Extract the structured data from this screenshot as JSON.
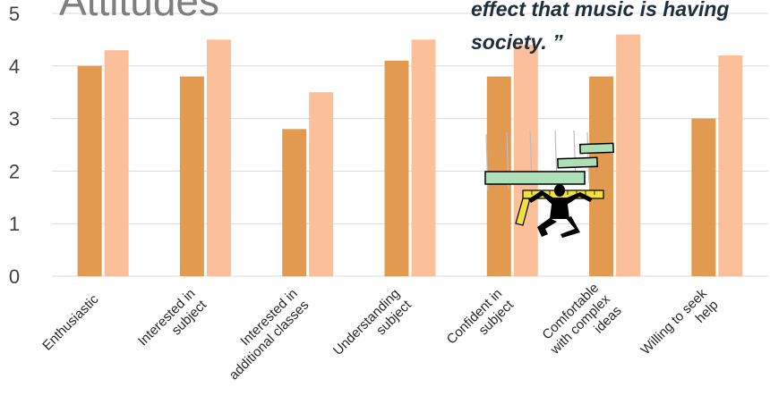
{
  "slide": {
    "title": "Attitudes",
    "quote_line1": "effect that music is having",
    "quote_line2": "society. ”"
  },
  "chart_data": {
    "type": "bar",
    "categories": [
      [
        "Enthusiastic"
      ],
      [
        "Interested in",
        "subject"
      ],
      [
        "Interested in",
        "additional classes"
      ],
      [
        "Understanding",
        "subject"
      ],
      [
        "Confident in",
        "subject"
      ],
      [
        "Comfortable",
        "with complex",
        "ideas"
      ],
      [
        "Willing to seek",
        "help"
      ]
    ],
    "series": [
      {
        "values": [
          4.0,
          3.8,
          2.8,
          4.1,
          3.8,
          3.8,
          3.0
        ],
        "color": "#e29a50"
      },
      {
        "values": [
          4.3,
          4.5,
          3.5,
          4.5,
          4.4,
          4.6,
          4.2
        ],
        "color": "#fbbf9a"
      }
    ],
    "ylim": [
      0,
      5
    ],
    "yticks": [
      0,
      1,
      2,
      3,
      4,
      5
    ],
    "grid": true,
    "gridline_color": "#d9d9d9",
    "legend": "none"
  },
  "clipart": {
    "icon": "weightlifter-figure-icon",
    "bar_color": "#aee0b8",
    "tape_color": "#f0e040"
  }
}
